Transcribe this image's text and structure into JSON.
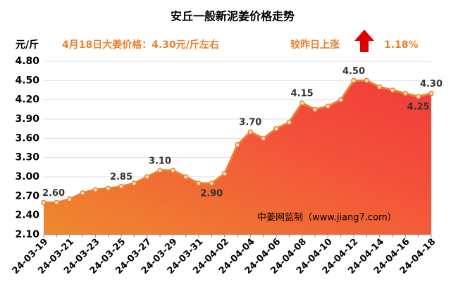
{
  "chart_data": {
    "type": "area",
    "title": "安丘一般新泥姜价格走势",
    "y_label": "元/斤",
    "subtitle": "4月18日大姜价格：4.30元/斤左右",
    "change_label": "较昨日上涨",
    "change_value": "1.18%",
    "watermark": "中姜网监制（www.jiang7.com）",
    "categories": [
      "24-03-19",
      null,
      "24-03-21",
      null,
      "24-03-23",
      null,
      "24-03-25",
      null,
      "24-03-27",
      null,
      "24-03-29",
      null,
      "24-03-31",
      null,
      "24-04-02",
      null,
      "24-04-04",
      null,
      "24-04-06",
      null,
      "24-04-08",
      null,
      "24-04-10",
      null,
      "24-04-12",
      null,
      "24-04-14",
      null,
      "24-04-16",
      null,
      "24-04-18"
    ],
    "values": [
      2.6,
      2.6,
      2.65,
      2.75,
      2.8,
      2.82,
      2.85,
      2.9,
      3.0,
      3.1,
      3.1,
      3.0,
      2.9,
      2.9,
      3.05,
      3.5,
      3.7,
      3.6,
      3.75,
      3.85,
      4.15,
      4.05,
      4.1,
      4.2,
      4.5,
      4.5,
      4.4,
      4.35,
      4.3,
      4.25,
      4.3
    ],
    "value_labels": [
      "2.60",
      null,
      null,
      null,
      null,
      null,
      "2.85",
      null,
      null,
      "3.10",
      null,
      null,
      null,
      "2.90",
      null,
      null,
      "3.70",
      null,
      null,
      null,
      "4.15",
      null,
      null,
      null,
      "4.50",
      null,
      null,
      null,
      null,
      "4.25",
      "4.30"
    ],
    "color": "#e8822f",
    "ylim": [
      2.1,
      4.8
    ],
    "yticks": [
      {
        "value": 2.1,
        "label": "2.10"
      },
      {
        "value": 2.4,
        "label": "2.40"
      },
      {
        "value": 2.7,
        "label": "2.70"
      },
      {
        "value": 3.0,
        "label": "3.00"
      },
      {
        "value": 3.3,
        "label": "3.30"
      },
      {
        "value": 3.6,
        "label": "3.60"
      },
      {
        "value": 3.9,
        "label": "3.90"
      },
      {
        "value": 4.2,
        "label": "4.20"
      },
      {
        "value": 4.5,
        "label": "4.50"
      },
      {
        "value": 4.8,
        "label": "4.80"
      }
    ],
    "grid": true
  }
}
